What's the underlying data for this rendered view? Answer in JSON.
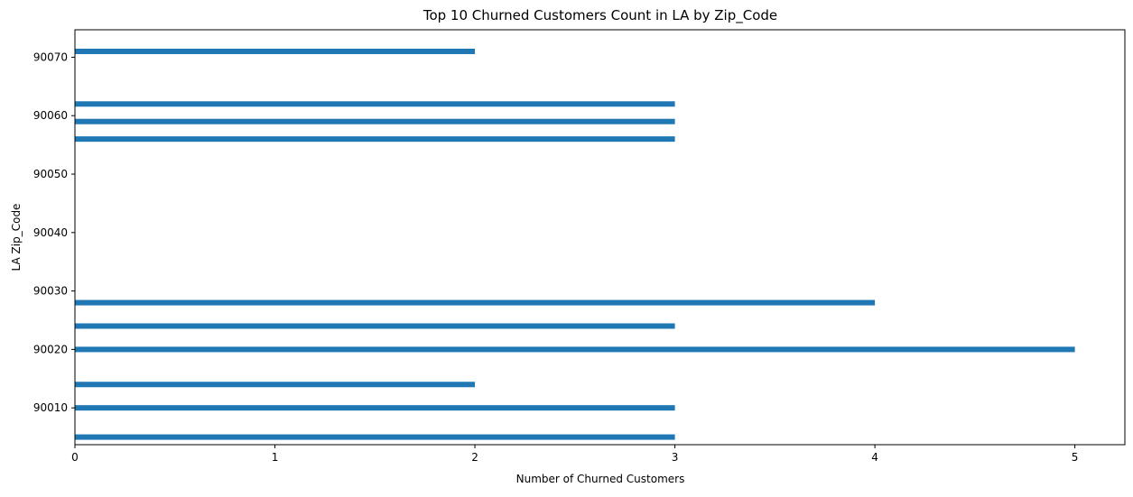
{
  "chart_data": {
    "type": "bar",
    "orientation": "horizontal",
    "title": "Top 10 Churned Customers Count in LA by Zip_Code",
    "xlabel": "Number of Churned Customers",
    "ylabel": "LA Zip_Code",
    "xlim": [
      0,
      5.25
    ],
    "ylim": [
      90003.7,
      90074.7
    ],
    "xticks": [
      0,
      1,
      2,
      3,
      4,
      5
    ],
    "yticks": [
      90010,
      90020,
      90030,
      90040,
      90050,
      90060,
      90070
    ],
    "grid": false,
    "bar_color": "#1f77b4",
    "bars": [
      {
        "zip": 90005,
        "value": 3
      },
      {
        "zip": 90010,
        "value": 3
      },
      {
        "zip": 90014,
        "value": 2
      },
      {
        "zip": 90020,
        "value": 5
      },
      {
        "zip": 90024,
        "value": 3
      },
      {
        "zip": 90028,
        "value": 4
      },
      {
        "zip": 90056,
        "value": 3
      },
      {
        "zip": 90059,
        "value": 3
      },
      {
        "zip": 90062,
        "value": 3
      },
      {
        "zip": 90071,
        "value": 2
      }
    ]
  }
}
